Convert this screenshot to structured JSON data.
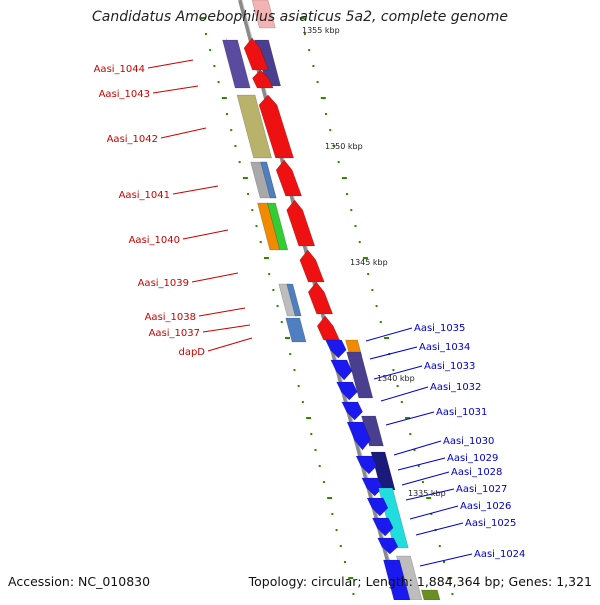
{
  "title": "Candidatus Amoebophilus asiaticus 5a2, complete genome",
  "accession": "Accession: NC_010830",
  "topology": "Topology: circular; Length: 1,884,364 bp; Genes: 1,321",
  "colors": {
    "left_label": "#cc0000",
    "right_label": "#0000cc",
    "backbone": "#8a8a8a",
    "tick": "#2e8b00"
  },
  "scale_labels": [
    {
      "id": "scale-1355",
      "text": "1355 kbp"
    },
    {
      "id": "scale-1350",
      "text": "1350 kbp"
    },
    {
      "id": "scale-1345",
      "text": "1345 kbp"
    },
    {
      "id": "scale-1340",
      "text": "1340 kbp"
    },
    {
      "id": "scale-1335",
      "text": "1335 kbp"
    }
  ],
  "left_genes": [
    "Aasi_1044",
    "Aasi_1043",
    "Aasi_1042",
    "Aasi_1041",
    "Aasi_1040",
    "Aasi_1039",
    "Aasi_1038",
    "Aasi_1037",
    "dapD"
  ],
  "right_genes": [
    "Aasi_1035",
    "Aasi_1034",
    "Aasi_1033",
    "Aasi_1032",
    "Aasi_1031",
    "Aasi_1030",
    "Aasi_1029",
    "Aasi_1028",
    "Aasi_1027",
    "Aasi_1026",
    "Aasi_1025",
    "Aasi_1024"
  ]
}
